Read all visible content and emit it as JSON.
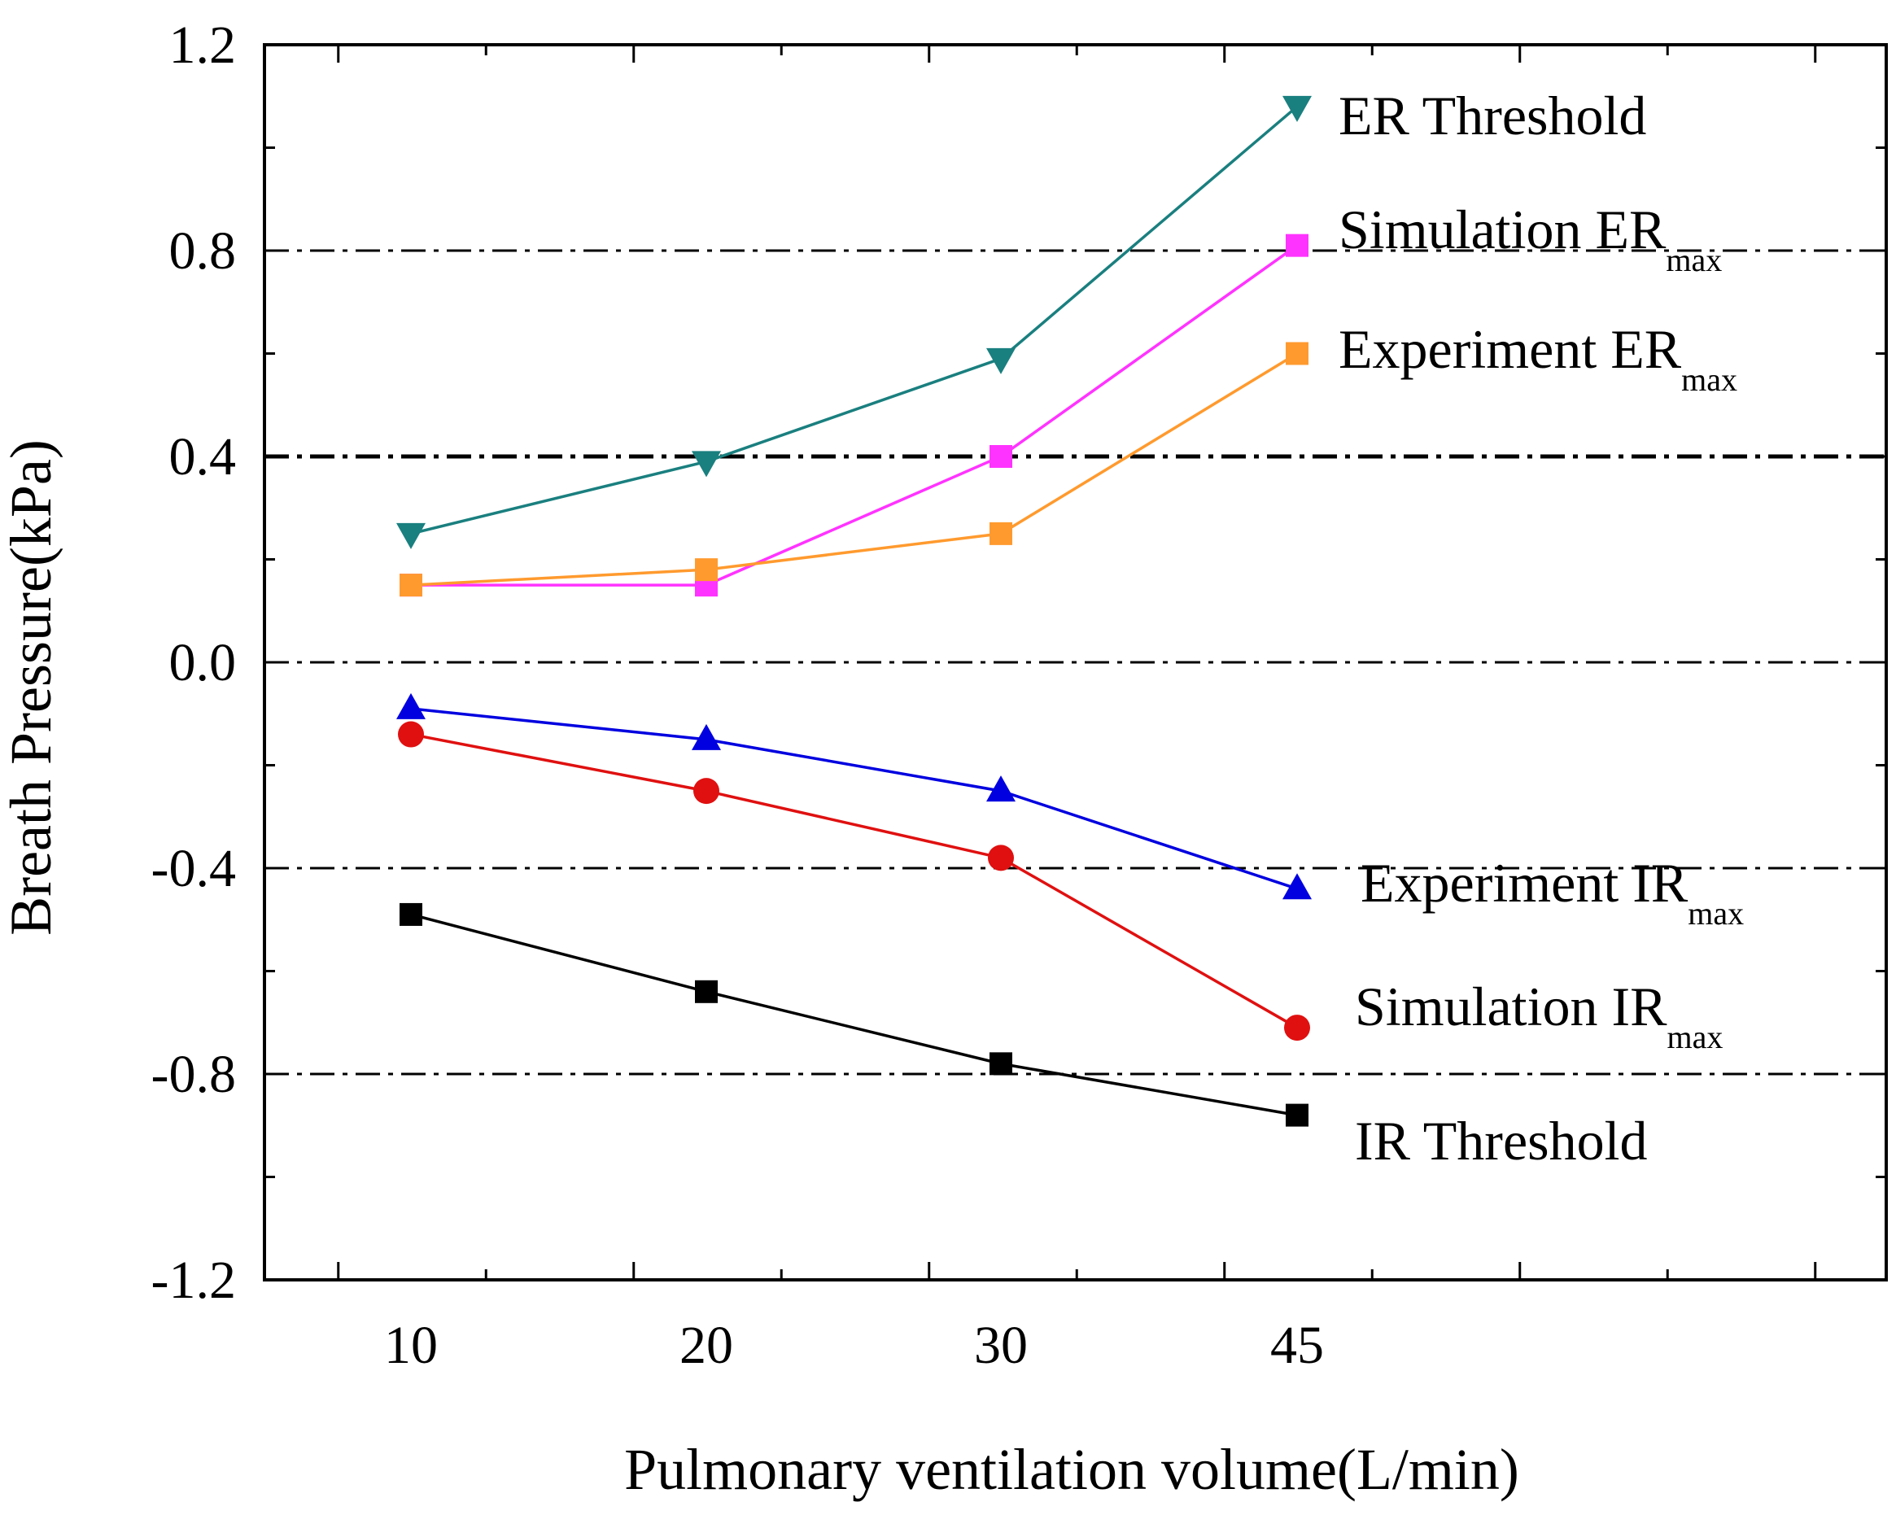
{
  "chart_data": {
    "type": "line",
    "title": "",
    "xlabel": "Pulmonary ventilation volume(L/min)",
    "ylabel": "Breath Pressure(kPa)",
    "x_categories": [
      "10",
      "20",
      "30",
      "45"
    ],
    "ylim": [
      -1.2,
      1.2
    ],
    "y_ticks": [
      "1.2",
      "0.8",
      "0.4",
      "0.0",
      "-0.4",
      "-0.8",
      "-1.2"
    ],
    "y_tick_values": [
      1.2,
      0.8,
      0.4,
      0.0,
      -0.4,
      -0.8,
      -1.2
    ],
    "reference_lines": [
      0.8,
      0.4,
      0.0,
      -0.4,
      -0.8
    ],
    "series": [
      {
        "name": "ER Threshold",
        "sub": "",
        "color": "#1a7f7f",
        "marker": "triangle-down",
        "values": [
          0.25,
          0.39,
          0.59,
          1.08
        ]
      },
      {
        "name": "Simulation ER",
        "sub": "max",
        "color": "#ff33ff",
        "marker": "square",
        "values": [
          0.15,
          0.15,
          0.4,
          0.81
        ]
      },
      {
        "name": "Experiment ER",
        "sub": "max",
        "color": "#ff9a2e",
        "marker": "square",
        "values": [
          0.15,
          0.18,
          0.25,
          0.6
        ]
      },
      {
        "name": "Experiment IR",
        "sub": "max",
        "color": "#0000e0",
        "marker": "triangle-up",
        "values": [
          -0.09,
          -0.15,
          -0.25,
          -0.44
        ]
      },
      {
        "name": "Simulation IR",
        "sub": "max",
        "color": "#e01010",
        "marker": "circle",
        "values": [
          -0.14,
          -0.25,
          -0.38,
          -0.71
        ]
      },
      {
        "name": "IR Threshold",
        "sub": "",
        "color": "#000000",
        "marker": "square",
        "values": [
          -0.49,
          -0.64,
          -0.78,
          -0.88
        ]
      }
    ]
  }
}
